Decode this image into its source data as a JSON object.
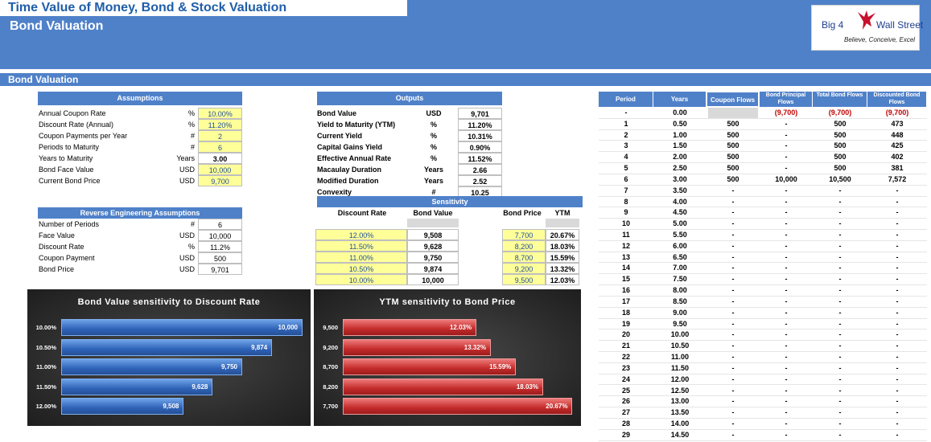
{
  "header": {
    "title": "Time Value of Money, Bond & Stock Valuation",
    "subtitle": "Bond Valuation",
    "logo": {
      "left": "Big 4",
      "right": "Wall Street",
      "tagline": "Believe, Conceive, Excel"
    }
  },
  "section_title": "Bond Valuation",
  "assumptions": {
    "title": "Assumptions",
    "rows": [
      {
        "label": "Annual Coupon Rate",
        "unit": "%",
        "value": "10.00%"
      },
      {
        "label": "Discount Rate (Annual)",
        "unit": "%",
        "value": "11.20%"
      },
      {
        "label": "Coupon Payments per Year",
        "unit": "#",
        "value": "2"
      },
      {
        "label": "Periods to Maturity",
        "unit": "#",
        "value": "6"
      },
      {
        "label": "Years to Maturity",
        "unit": "Years",
        "value": "3.00"
      },
      {
        "label": "Bond Face Value",
        "unit": "USD",
        "value": "10,000"
      },
      {
        "label": "Current Bond Price",
        "unit": "USD",
        "value": "9,700"
      }
    ]
  },
  "reverse": {
    "title": "Reverse Engineering Assumptions",
    "rows": [
      {
        "label": "Number of Periods",
        "unit": "#",
        "value": "6"
      },
      {
        "label": "Face Value",
        "unit": "USD",
        "value": "10,000"
      },
      {
        "label": "Discount Rate",
        "unit": "%",
        "value": "11.2%"
      },
      {
        "label": "Coupon Payment",
        "unit": "USD",
        "value": "500"
      },
      {
        "label": "Bond Price",
        "unit": "USD",
        "value": "9,701"
      }
    ]
  },
  "outputs": {
    "title": "Outputs",
    "rows": [
      {
        "label": "Bond Value",
        "unit": "USD",
        "value": "9,701"
      },
      {
        "label": "Yield to Maturity (YTM)",
        "unit": "%",
        "value": "11.20%"
      },
      {
        "label": "Current Yield",
        "unit": "%",
        "value": "10.31%"
      },
      {
        "label": "Capital Gains Yield",
        "unit": "%",
        "value": "0.90%"
      },
      {
        "label": "Effective Annual Rate",
        "unit": "%",
        "value": "11.52%"
      },
      {
        "label": "Macaulay Duration",
        "unit": "Years",
        "value": "2.66"
      },
      {
        "label": "Modified Duration",
        "unit": "Years",
        "value": "2.52"
      },
      {
        "label": "Convexity",
        "unit": "#",
        "value": "10.25"
      }
    ]
  },
  "sensitivity": {
    "title": "Sensitivity",
    "h_discount": "Discount Rate",
    "h_bondvalue": "Bond Value",
    "h_bondprice": "Bond Price",
    "h_ytm": "YTM",
    "left": [
      {
        "rate": "12.00%",
        "value": "9,508"
      },
      {
        "rate": "11.50%",
        "value": "9,628"
      },
      {
        "rate": "11.00%",
        "value": "9,750"
      },
      {
        "rate": "10.50%",
        "value": "9,874"
      },
      {
        "rate": "10.00%",
        "value": "10,000"
      }
    ],
    "right": [
      {
        "price": "7,700",
        "ytm": "20.67%"
      },
      {
        "price": "8,200",
        "ytm": "18.03%"
      },
      {
        "price": "8,700",
        "ytm": "15.59%"
      },
      {
        "price": "9,200",
        "ytm": "13.32%"
      },
      {
        "price": "9,500",
        "ytm": "12.03%"
      }
    ]
  },
  "period_table": {
    "headers": [
      "Period",
      "Years",
      "Coupon Flows",
      "Bond Principal Flows",
      "Total Bond Flows",
      "Discounted Bond Flows"
    ],
    "rows": [
      [
        "-",
        "0.00",
        "",
        "(9,700)",
        "(9,700)",
        "(9,700)"
      ],
      [
        "1",
        "0.50",
        "500",
        "-",
        "500",
        "473"
      ],
      [
        "2",
        "1.00",
        "500",
        "-",
        "500",
        "448"
      ],
      [
        "3",
        "1.50",
        "500",
        "-",
        "500",
        "425"
      ],
      [
        "4",
        "2.00",
        "500",
        "-",
        "500",
        "402"
      ],
      [
        "5",
        "2.50",
        "500",
        "-",
        "500",
        "381"
      ],
      [
        "6",
        "3.00",
        "500",
        "10,000",
        "10,500",
        "7,572"
      ],
      [
        "7",
        "3.50",
        "-",
        "-",
        "-",
        "-"
      ],
      [
        "8",
        "4.00",
        "-",
        "-",
        "-",
        "-"
      ],
      [
        "9",
        "4.50",
        "-",
        "-",
        "-",
        "-"
      ],
      [
        "10",
        "5.00",
        "-",
        "-",
        "-",
        "-"
      ],
      [
        "11",
        "5.50",
        "-",
        "-",
        "-",
        "-"
      ],
      [
        "12",
        "6.00",
        "-",
        "-",
        "-",
        "-"
      ],
      [
        "13",
        "6.50",
        "-",
        "-",
        "-",
        "-"
      ],
      [
        "14",
        "7.00",
        "-",
        "-",
        "-",
        "-"
      ],
      [
        "15",
        "7.50",
        "-",
        "-",
        "-",
        "-"
      ],
      [
        "16",
        "8.00",
        "-",
        "-",
        "-",
        "-"
      ],
      [
        "17",
        "8.50",
        "-",
        "-",
        "-",
        "-"
      ],
      [
        "18",
        "9.00",
        "-",
        "-",
        "-",
        "-"
      ],
      [
        "19",
        "9.50",
        "-",
        "-",
        "-",
        "-"
      ],
      [
        "20",
        "10.00",
        "-",
        "-",
        "-",
        "-"
      ],
      [
        "21",
        "10.50",
        "-",
        "-",
        "-",
        "-"
      ],
      [
        "22",
        "11.00",
        "-",
        "-",
        "-",
        "-"
      ],
      [
        "23",
        "11.50",
        "-",
        "-",
        "-",
        "-"
      ],
      [
        "24",
        "12.00",
        "-",
        "-",
        "-",
        "-"
      ],
      [
        "25",
        "12.50",
        "-",
        "-",
        "-",
        "-"
      ],
      [
        "26",
        "13.00",
        "-",
        "-",
        "-",
        "-"
      ],
      [
        "27",
        "13.50",
        "-",
        "-",
        "-",
        "-"
      ],
      [
        "28",
        "14.00",
        "-",
        "-",
        "-",
        "-"
      ],
      [
        "29",
        "14.50",
        "-",
        "-",
        "-",
        "-"
      ]
    ]
  },
  "chart_data": [
    {
      "type": "bar",
      "orientation": "horizontal",
      "title": "Bond Value sensitivity to Discount Rate",
      "categories": [
        "10.00%",
        "10.50%",
        "11.00%",
        "11.50%",
        "12.00%"
      ],
      "values": [
        10000,
        9874,
        9750,
        9628,
        9508
      ],
      "value_labels": [
        "10,000",
        "9,874",
        "9,750",
        "9,628",
        "9,508"
      ],
      "color": "#2f63b8"
    },
    {
      "type": "bar",
      "orientation": "horizontal",
      "title": "YTM sensitivity to Bond Price",
      "categories": [
        "9,500",
        "9,200",
        "8,700",
        "8,200",
        "7,700"
      ],
      "values": [
        12.03,
        13.32,
        15.59,
        18.03,
        20.67
      ],
      "value_labels": [
        "12.03%",
        "13.32%",
        "15.59%",
        "18.03%",
        "20.67%"
      ],
      "color": "#c42b2b"
    }
  ],
  "colors": {
    "header_blue": "#4f81c9",
    "input_yellow": "#ffff99",
    "negative_red": "#c00000"
  }
}
